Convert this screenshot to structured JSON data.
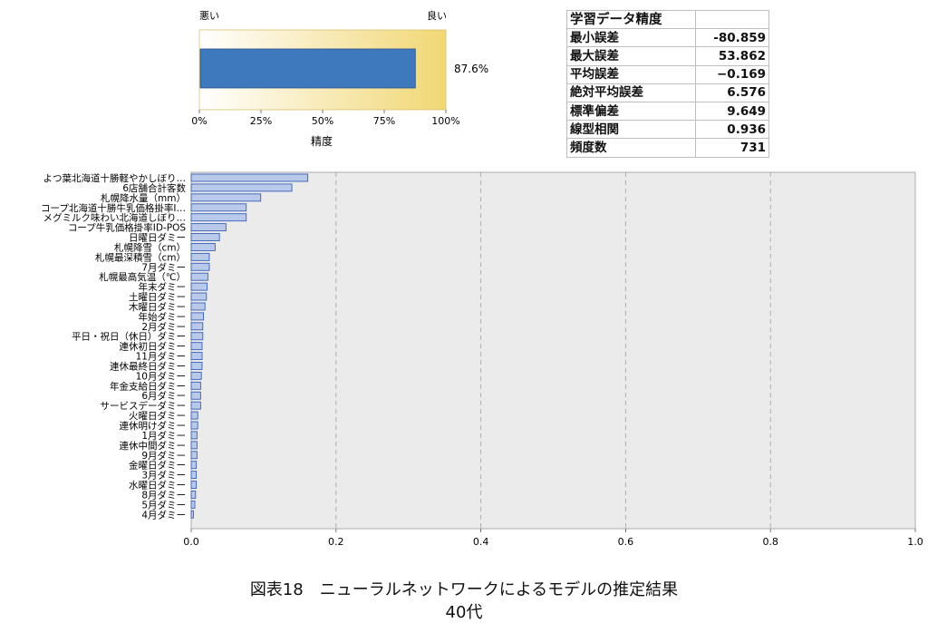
{
  "gauge": {
    "left_label": "悪い",
    "right_label": "良い",
    "value_text": "87.6%",
    "value_fraction": 0.876,
    "ticks": [
      "0%",
      "25%",
      "50%",
      "75%",
      "100%"
    ],
    "xlabel": "精度"
  },
  "stats_table": {
    "title": "学習データ精度",
    "rows": [
      {
        "label": "最小誤差",
        "value": "-80.859"
      },
      {
        "label": "最大誤差",
        "value": "53.862"
      },
      {
        "label": "平均誤差",
        "value": "−0.169"
      },
      {
        "label": "絶対平均誤差",
        "value": "6.576"
      },
      {
        "label": "標準偏差",
        "value": "9.649"
      },
      {
        "label": "線型相関",
        "value": "0.936"
      },
      {
        "label": "頻度数",
        "value": "731"
      }
    ]
  },
  "chart_data": {
    "type": "bar",
    "orientation": "horizontal",
    "categories": [
      "よつ葉北海道十勝軽やかしぼり…",
      "6店舗合計客数",
      "札幌降水量（mm）",
      "コープ北海道十勝牛乳価格掛率I…",
      "メグミルク味わい北海道しぼり…",
      "コープ牛乳価格掛率ID-POS",
      "日曜日ダミー",
      "札幌降雪（cm）",
      "札幌最深積雪（cm）",
      "7月ダミー",
      "札幌最高気温（℃）",
      "年末ダミー",
      "土曜日ダミー",
      "木曜日ダミー",
      "年始ダミー",
      "2月ダミー",
      "平日・祝日（休日）ダミー",
      "連休初日ダミー",
      "11月ダミー",
      "連休最終日ダミー",
      "10月ダミー",
      "年金支給日ダミー",
      "6月ダミー",
      "サービスデーダミー",
      "火曜日ダミー",
      "連休明けダミー",
      "1月ダミー",
      "連休中間ダミー",
      "9月ダミー",
      "金曜日ダミー",
      "3月ダミー",
      "水曜日ダミー",
      "8月ダミー",
      "5月ダミー",
      "4月ダミー"
    ],
    "values": [
      0.161,
      0.139,
      0.096,
      0.076,
      0.076,
      0.048,
      0.039,
      0.033,
      0.025,
      0.025,
      0.023,
      0.022,
      0.021,
      0.019,
      0.017,
      0.016,
      0.016,
      0.015,
      0.015,
      0.015,
      0.014,
      0.013,
      0.013,
      0.013,
      0.009,
      0.009,
      0.008,
      0.008,
      0.008,
      0.007,
      0.007,
      0.007,
      0.006,
      0.005,
      0.003
    ],
    "xlim": [
      0,
      1.0
    ],
    "xticks": [
      "0.0",
      "0.2",
      "0.4",
      "0.6",
      "0.8",
      "1.0"
    ],
    "grid": true,
    "bar_color": "#b8c9ea",
    "bar_edge_color": "#3a5fb8",
    "background_color": "#ebebeb"
  },
  "caption": {
    "line1": "図表18　ニューラルネットワークによるモデルの推定結果",
    "line2": "40代"
  },
  "colors": {
    "gauge_bar": "#3e78bd",
    "gauge_gradient_start": "#ffffff",
    "gauge_gradient_end": "#f1d774"
  }
}
